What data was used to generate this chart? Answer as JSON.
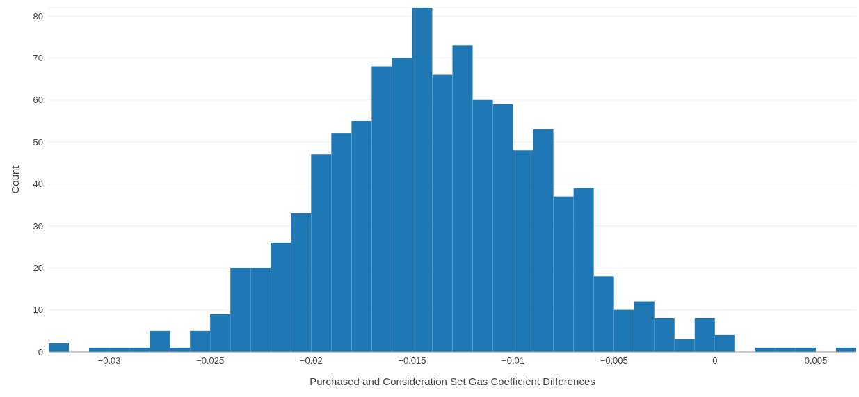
{
  "chart_data": {
    "type": "histogram",
    "xlabel": "Purchased and Consideration Set Gas Coefficient Differences",
    "ylabel": "Count",
    "bins": [
      -0.033,
      -0.032,
      -0.031,
      -0.03,
      -0.029,
      -0.028,
      -0.027,
      -0.026,
      -0.025,
      -0.024,
      -0.023,
      -0.022,
      -0.021,
      -0.02,
      -0.019,
      -0.018,
      -0.017,
      -0.016,
      -0.015,
      -0.014,
      -0.013,
      -0.012,
      -0.011,
      -0.01,
      -0.009,
      -0.008,
      -0.007,
      -0.006,
      -0.005,
      -0.004,
      -0.003,
      -0.002,
      -0.001,
      0,
      0.001,
      0.002,
      0.003,
      0.004,
      0.005,
      0.006,
      0.007
    ],
    "values": [
      2,
      0,
      1,
      1,
      1,
      5,
      1,
      5,
      9,
      20,
      20,
      26,
      33,
      47,
      52,
      55,
      68,
      70,
      82,
      66,
      73,
      60,
      59,
      48,
      53,
      37,
      39,
      18,
      10,
      12,
      8,
      3,
      8,
      4,
      0,
      1,
      1,
      1,
      0,
      1
    ],
    "color": "#1f77b4",
    "xlim": [
      -0.033,
      0.007
    ],
    "xticks": [
      {
        "value": -0.03,
        "label": "−0.03"
      },
      {
        "value": -0.025,
        "label": "−0.025"
      },
      {
        "value": -0.02,
        "label": "−0.02"
      },
      {
        "value": -0.015,
        "label": "−0.015"
      },
      {
        "value": -0.01,
        "label": "−0.01"
      },
      {
        "value": -0.005,
        "label": "−0.005"
      },
      0,
      0.005
    ],
    "ylim": [
      0,
      82
    ],
    "yticks": [
      0,
      10,
      20,
      30,
      40,
      50,
      60,
      70,
      80
    ],
    "grid": "y",
    "legend": false
  }
}
